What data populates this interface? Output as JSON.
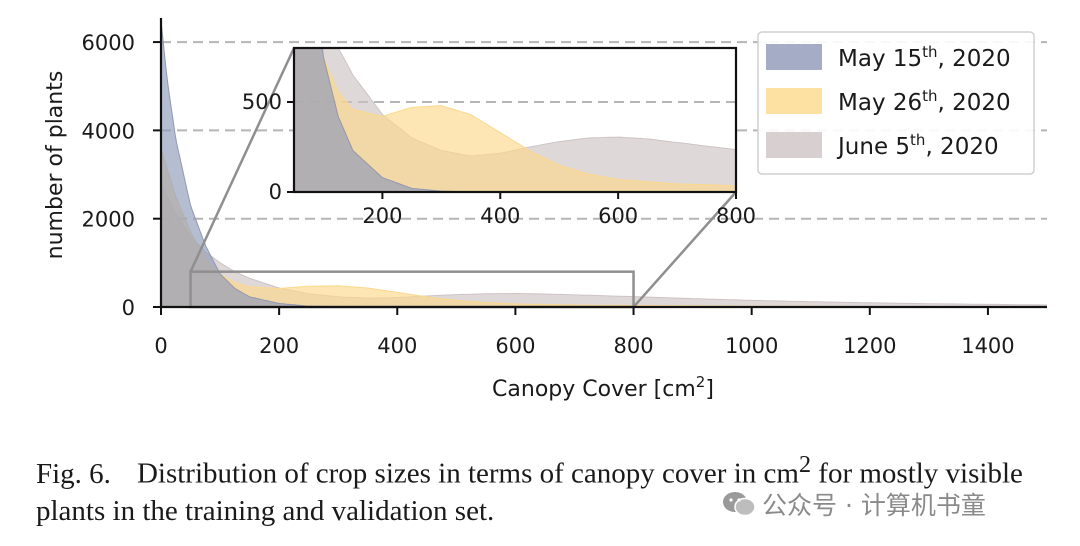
{
  "chart_data": {
    "type": "area",
    "xlabel": "Canopy Cover [cm",
    "xlabel_sup": "2",
    "xlabel_end": "]",
    "ylabel": "number of plants",
    "xlim": [
      0,
      1500
    ],
    "ylim": [
      0,
      6500
    ],
    "x_ticks": [
      0,
      200,
      400,
      600,
      800,
      1000,
      1200,
      1400
    ],
    "y_ticks": [
      0,
      2000,
      4000,
      6000
    ],
    "grid": "horizontal dashed",
    "legend_position": "top-right",
    "series": [
      {
        "name": "May 15",
        "name_sup": "th",
        "name_end": ", 2020",
        "color": "#8e99b8",
        "x": [
          0,
          10,
          25,
          50,
          75,
          100,
          125,
          150,
          200,
          250,
          300,
          350
        ],
        "y": [
          6500,
          5200,
          3800,
          2300,
          1400,
          750,
          420,
          230,
          80,
          20,
          5,
          0
        ]
      },
      {
        "name": "May 26",
        "name_sup": "th",
        "name_end": ", 2020",
        "color": "#fcd98b",
        "x": [
          0,
          25,
          50,
          75,
          100,
          125,
          150,
          200,
          250,
          300,
          350,
          400,
          450,
          500,
          550,
          600,
          700,
          800,
          900,
          1000,
          1100,
          1200,
          1300,
          1400,
          1500
        ],
        "y": [
          3600,
          2500,
          1700,
          1100,
          750,
          560,
          460,
          420,
          470,
          480,
          430,
          330,
          230,
          150,
          100,
          70,
          45,
          35,
          25,
          20,
          15,
          10,
          8,
          5,
          3
        ]
      },
      {
        "name": "June 5",
        "name_sup": "th",
        "name_end": ", 2020",
        "color": "#cec3c4",
        "x": [
          0,
          25,
          50,
          75,
          100,
          125,
          150,
          200,
          250,
          300,
          350,
          400,
          450,
          500,
          550,
          600,
          650,
          700,
          750,
          800,
          900,
          1000,
          1100,
          1200,
          1300,
          1400,
          1500
        ],
        "y": [
          2800,
          2100,
          1600,
          1250,
          1000,
          800,
          650,
          430,
          300,
          230,
          200,
          215,
          250,
          280,
          300,
          305,
          295,
          275,
          255,
          235,
          190,
          150,
          120,
          95,
          75,
          60,
          45
        ]
      }
    ],
    "inset": {
      "xlim": [
        50,
        800
      ],
      "ylim": [
        0,
        800
      ],
      "x_ticks": [
        200,
        400,
        600,
        800
      ],
      "y_ticks": [
        0,
        500
      ]
    }
  },
  "caption": {
    "label": "Fig. 6.",
    "text_before": "Distribution of crop sizes in terms of canopy cover in cm",
    "sup": "2",
    "text_after": " for mostly visible plants in the training and validation set."
  },
  "watermark": "公众号 · 计算机书童"
}
